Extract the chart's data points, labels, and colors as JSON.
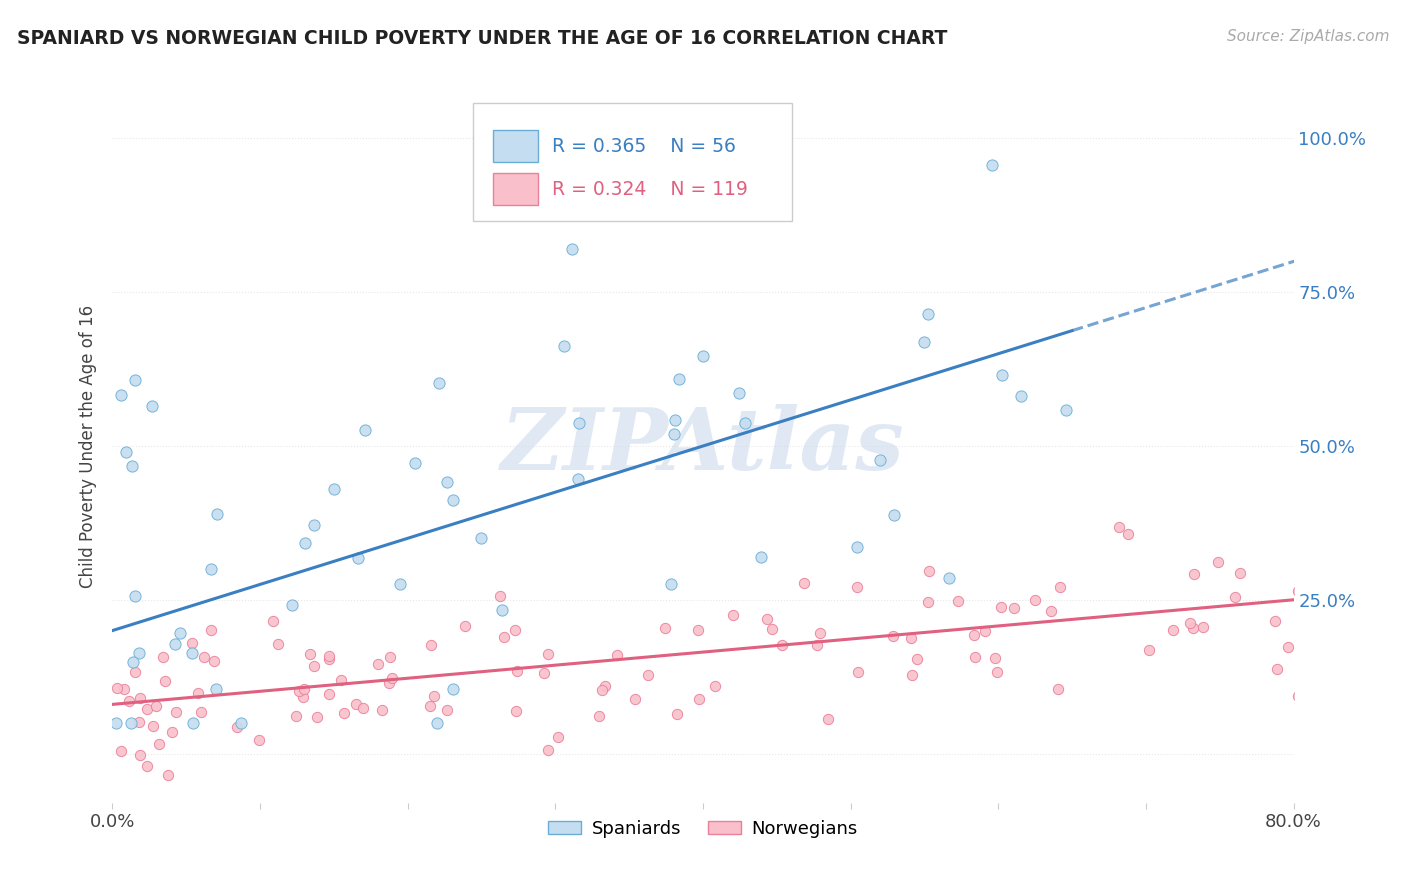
{
  "title": "SPANIARD VS NORWEGIAN CHILD POVERTY UNDER THE AGE OF 16 CORRELATION CHART",
  "source": "Source: ZipAtlas.com",
  "ylabel": "Child Poverty Under the Age of 16",
  "right_yticks_labels": [
    "100.0%",
    "75.0%",
    "50.0%",
    "25.0%"
  ],
  "right_ytick_vals": [
    1.0,
    0.75,
    0.5,
    0.25
  ],
  "legend_blue_r": "R = 0.365",
  "legend_blue_n": "N = 56",
  "legend_pink_r": "R = 0.324",
  "legend_pink_n": "N = 119",
  "legend_blue_label": "Spaniards",
  "legend_pink_label": "Norwegians",
  "blue_fill": "#c5ddf0",
  "blue_edge": "#6aaed6",
  "pink_fill": "#f9c0cb",
  "pink_edge": "#e8809a",
  "blue_line": "#3a7fc1",
  "pink_line": "#e06080",
  "background_color": "#ffffff",
  "grid_color": "#e8e8e8",
  "xlim": [
    0.0,
    0.8
  ],
  "ylim": [
    -0.08,
    1.08
  ],
  "n_spaniards": 56,
  "n_norwegians": 119
}
